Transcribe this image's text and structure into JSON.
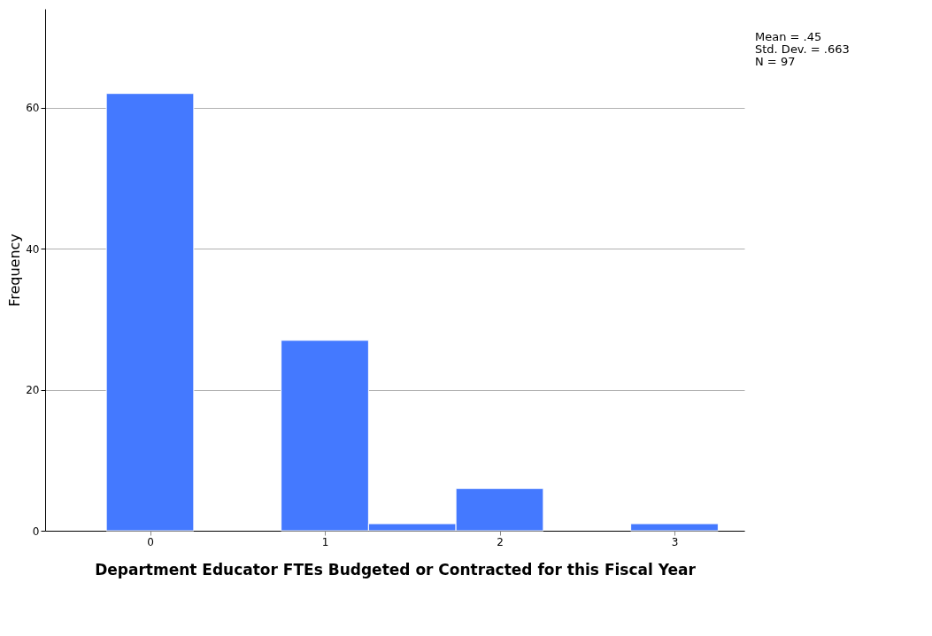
{
  "chart_data": {
    "type": "histogram",
    "xlabel": "Department Educator FTEs Budgeted or Contracted for this Fiscal Year",
    "ylabel": "Frequency",
    "bins": [
      -0.25,
      0.25,
      0.75,
      1.25,
      1.75,
      2.25,
      2.75,
      3.25
    ],
    "values": [
      62,
      0,
      27,
      1,
      6,
      0,
      1
    ],
    "color": "#4479ff",
    "xlim": [
      -0.6,
      3.4
    ],
    "xticks": [
      0,
      1,
      2,
      3
    ],
    "ylim": [
      0,
      74
    ],
    "yticks": [
      0,
      20,
      40,
      60
    ],
    "grid": "y",
    "annotations": [
      "Mean = .45",
      "Std. Dev. = .663",
      "N = 97"
    ]
  }
}
